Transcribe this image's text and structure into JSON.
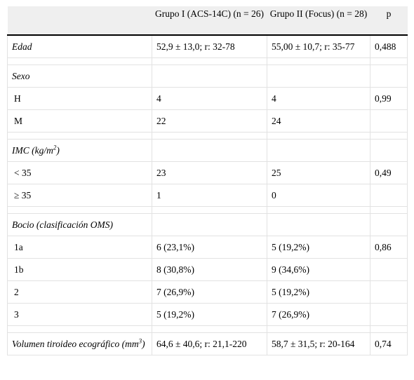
{
  "header": {
    "col1": "",
    "col2": "Grupo I (ACS-14C) (n = 26)",
    "col3": "Grupo II (Focus) (n = 28)",
    "col4": "p"
  },
  "rows": {
    "edad": {
      "label": "Edad",
      "g1": "52,9 ± 13,0; r: 32-78",
      "g2": "55,00 ± 10,7; r: 35-77",
      "p": "0,488"
    },
    "sexo": {
      "label": "Sexo"
    },
    "h": {
      "label": "H",
      "g1": "4",
      "g2": "4",
      "p": "0,99"
    },
    "m": {
      "label": "M",
      "g1": "22",
      "g2": "24",
      "p": ""
    },
    "imc": {
      "label_main": "IMC (kg/m",
      "label_sup": "2",
      "label_end": ")"
    },
    "imc_lt35": {
      "label": "< 35",
      "g1": "23",
      "g2": "25",
      "p": "0,49"
    },
    "imc_ge35": {
      "label": "≥ 35",
      "g1": "1",
      "g2": "0",
      "p": ""
    },
    "bocio": {
      "label": "Bocio (clasificación OMS)"
    },
    "b1a": {
      "label": "1a",
      "g1": "6 (23,1%)",
      "g2": "5 (19,2%)",
      "p": "0,86"
    },
    "b1b": {
      "label": "1b",
      "g1": "8 (30,8%)",
      "g2": "9 (34,6%)",
      "p": ""
    },
    "b2": {
      "label": "2",
      "g1": "7 (26,9%)",
      "g2": "5 (19,2%)",
      "p": ""
    },
    "b3": {
      "label": "3",
      "g1": "5 (19,2%)",
      "g2": "7 (26,9%)",
      "p": ""
    },
    "vol": {
      "label_main": "Volumen tiroideo ecográfico (mm",
      "label_sup": "3",
      "label_end": ")",
      "g1": "64,6 ± 40,6; r: 21,1-220",
      "g2": "58,7 ± 31,5; r: 20-164",
      "p": "0,74"
    }
  }
}
